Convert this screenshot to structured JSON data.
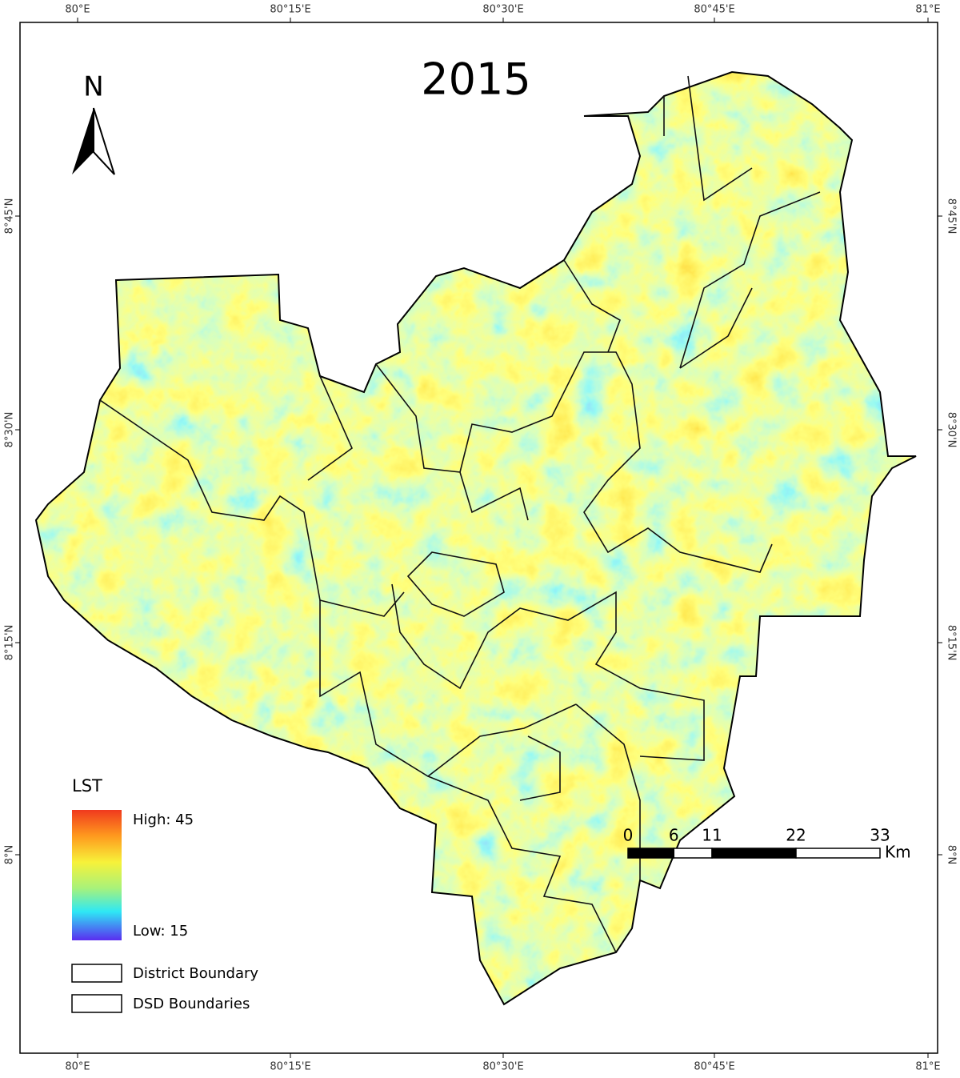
{
  "map": {
    "title": "2015",
    "north": "N",
    "top_labels": [
      "80°E",
      "80°15'E",
      "80°30'E",
      "80°45'E",
      "81°E"
    ],
    "bottom_labels": [
      "80°E",
      "80°15'E",
      "80°30'E",
      "80°45'E",
      "81°E"
    ],
    "left_labels": [
      "8°45'N",
      "8°30'N",
      "8°15'N",
      "8°N"
    ],
    "right_labels": [
      "8°45'N",
      "8°30'N",
      "8°15'N",
      "8°N"
    ]
  },
  "legend": {
    "title": "LST",
    "high": "High: 45",
    "low": "Low: 15",
    "items": [
      "District Boundary",
      "DSD Boundaries"
    ]
  },
  "scale_bar": {
    "ticks": [
      0,
      6,
      11,
      22,
      33
    ],
    "unit": "Km"
  }
}
